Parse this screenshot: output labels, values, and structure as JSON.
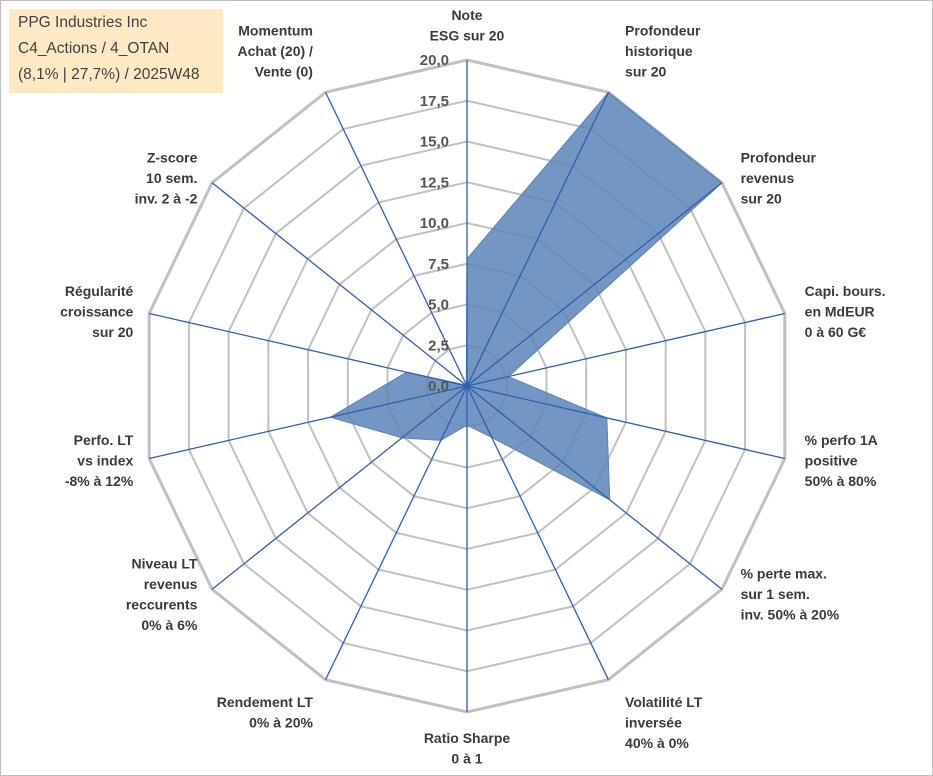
{
  "info": {
    "company": "PPG Industries Inc",
    "line2": "C4_Actions / 4_OTAN",
    "line3": "(8,1% | 27,7%) / 2025W48"
  },
  "colors": {
    "fill": "#5b84b7",
    "spoke": "#2e5fb0",
    "grid": "#c0c0c0",
    "background": "#ffffff",
    "info_box": "#fde9c4"
  },
  "chart_data": {
    "type": "radar",
    "title": "",
    "rmin": 0,
    "rmax": 20,
    "tick_step": 2.5,
    "tick_labels": [
      "0,0",
      "2,5",
      "5,0",
      "7,5",
      "10,0",
      "12,5",
      "15,0",
      "17,5",
      "20,0"
    ],
    "axes": [
      {
        "label": [
          "Note",
          "ESG sur 20"
        ],
        "value": 7.8
      },
      {
        "label": [
          "Profondeur",
          "historique",
          "sur 20"
        ],
        "value": 20.0
      },
      {
        "label": [
          "Profondeur",
          "revenus",
          "sur 20"
        ],
        "value": 20.0
      },
      {
        "label": [
          "Capi. bours.",
          "en MdEUR",
          "0 à 60 G€"
        ],
        "value": 2.6
      },
      {
        "label": [
          "% perfo 1A",
          "positive",
          "50% à 80%"
        ],
        "value": 8.8
      },
      {
        "label": [
          "% perte max.",
          "sur 1 sem.",
          "inv. 50% à 20%"
        ],
        "value": 11.2
      },
      {
        "label": [
          "Volatilité LT",
          "inversée",
          "40% à 0%"
        ],
        "value": 3.5
      },
      {
        "label": [
          "Ratio Sharpe",
          "0 à 1"
        ],
        "value": 2.4
      },
      {
        "label": [
          "Rendement LT",
          "0% à 20%"
        ],
        "value": 3.7
      },
      {
        "label": [
          "Niveau LT",
          "revenus",
          "reccurents",
          "0% à 6%"
        ],
        "value": 5.1
      },
      {
        "label": [
          "Perfo. LT",
          "vs index",
          "-8% à 12%"
        ],
        "value": 8.6
      },
      {
        "label": [
          "Régularité",
          "croissance",
          "sur 20"
        ],
        "value": 3.8
      },
      {
        "label": [
          "Z-score",
          "10 sem.",
          "inv. 2 à -2"
        ],
        "value": 0.1
      },
      {
        "label": [
          "Momentum",
          "Achat (20) /",
          "Vente (0)"
        ],
        "value": 0.1
      }
    ]
  }
}
